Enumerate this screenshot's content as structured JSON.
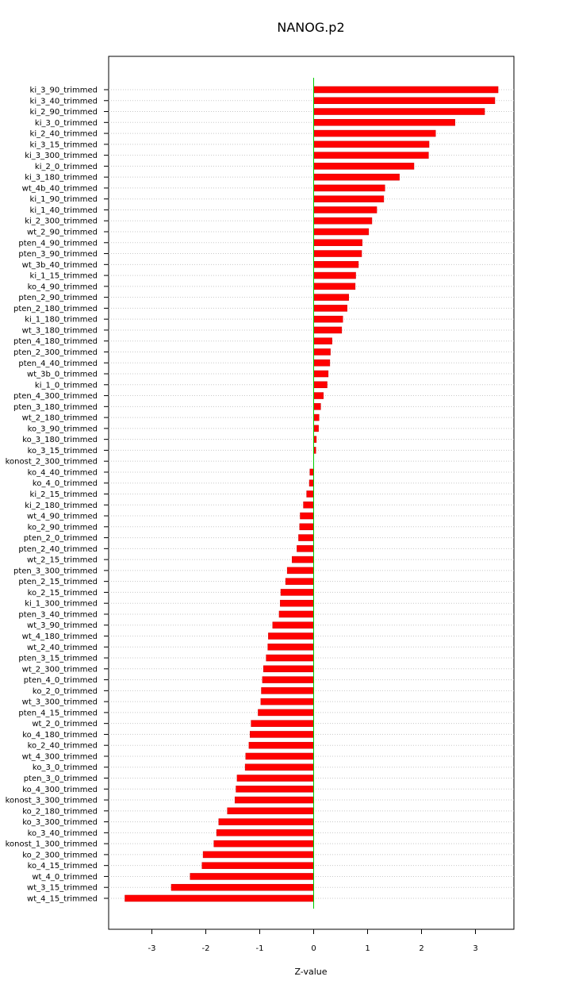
{
  "chart_data": {
    "type": "bar",
    "orientation": "horizontal",
    "title": "NANOG.p2",
    "xlabel": "Z-value",
    "ylabel": "",
    "xlim": [
      -3.75,
      3.7
    ],
    "xticks": [
      -3,
      -2,
      -1,
      0,
      1,
      2,
      3
    ],
    "grid": "horizontal dotted",
    "bar_color": "#ff0000",
    "zero_line_color": "#00cc00",
    "categories": [
      "ki_3_90_trimmed",
      "ki_3_40_trimmed",
      "ki_2_90_trimmed",
      "ki_3_0_trimmed",
      "ki_2_40_trimmed",
      "ki_3_15_trimmed",
      "ki_3_300_trimmed",
      "ki_2_0_trimmed",
      "ki_3_180_trimmed",
      "wt_4b_40_trimmed",
      "ki_1_90_trimmed",
      "ki_1_40_trimmed",
      "ki_2_300_trimmed",
      "wt_2_90_trimmed",
      "pten_4_90_trimmed",
      "pten_3_90_trimmed",
      "wt_3b_40_trimmed",
      "ki_1_15_trimmed",
      "ko_4_90_trimmed",
      "pten_2_90_trimmed",
      "pten_2_180_trimmed",
      "ki_1_180_trimmed",
      "wt_3_180_trimmed",
      "pten_4_180_trimmed",
      "pten_2_300_trimmed",
      "pten_4_40_trimmed",
      "wt_3b_0_trimmed",
      "ki_1_0_trimmed",
      "pten_4_300_trimmed",
      "pten_3_180_trimmed",
      "wt_2_180_trimmed",
      "ko_3_90_trimmed",
      "ko_3_180_trimmed",
      "ko_3_15_trimmed",
      "konost_2_300_trimmed",
      "ko_4_40_trimmed",
      "ko_4_0_trimmed",
      "ki_2_15_trimmed",
      "ki_2_180_trimmed",
      "wt_4_90_trimmed",
      "ko_2_90_trimmed",
      "pten_2_0_trimmed",
      "pten_2_40_trimmed",
      "wt_2_15_trimmed",
      "pten_3_300_trimmed",
      "pten_2_15_trimmed",
      "ko_2_15_trimmed",
      "ki_1_300_trimmed",
      "pten_3_40_trimmed",
      "wt_3_90_trimmed",
      "wt_4_180_trimmed",
      "wt_2_40_trimmed",
      "pten_3_15_trimmed",
      "wt_2_300_trimmed",
      "pten_4_0_trimmed",
      "ko_2_0_trimmed",
      "wt_3_300_trimmed",
      "pten_4_15_trimmed",
      "wt_2_0_trimmed",
      "ko_4_180_trimmed",
      "ko_2_40_trimmed",
      "wt_4_300_trimmed",
      "ko_3_0_trimmed",
      "pten_3_0_trimmed",
      "ko_4_300_trimmed",
      "konost_3_300_trimmed",
      "ko_2_180_trimmed",
      "ko_3_300_trimmed",
      "ko_3_40_trimmed",
      "konost_1_300_trimmed",
      "ko_2_300_trimmed",
      "ko_4_15_trimmed",
      "wt_4_0_trimmed",
      "wt_3_15_trimmed",
      "wt_4_15_trimmed"
    ],
    "values": [
      3.42,
      3.36,
      3.17,
      2.62,
      2.26,
      2.14,
      2.13,
      1.86,
      1.59,
      1.32,
      1.3,
      1.17,
      1.08,
      1.02,
      0.9,
      0.89,
      0.83,
      0.78,
      0.77,
      0.65,
      0.62,
      0.54,
      0.52,
      0.34,
      0.31,
      0.3,
      0.27,
      0.25,
      0.18,
      0.13,
      0.1,
      0.09,
      0.05,
      0.04,
      0.0,
      -0.07,
      -0.08,
      -0.13,
      -0.19,
      -0.25,
      -0.26,
      -0.28,
      -0.31,
      -0.4,
      -0.49,
      -0.52,
      -0.61,
      -0.62,
      -0.64,
      -0.76,
      -0.84,
      -0.85,
      -0.88,
      -0.93,
      -0.95,
      -0.97,
      -0.98,
      -1.03,
      -1.16,
      -1.18,
      -1.2,
      -1.26,
      -1.27,
      -1.42,
      -1.44,
      -1.46,
      -1.6,
      -1.76,
      -1.8,
      -1.85,
      -2.05,
      -2.07,
      -2.29,
      -2.64,
      -3.5
    ]
  }
}
